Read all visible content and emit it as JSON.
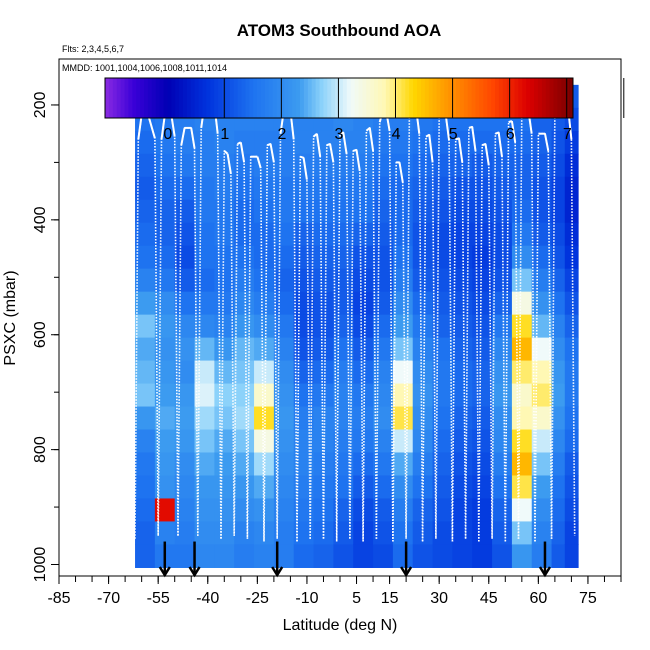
{
  "chart_data": {
    "type": "heatmap",
    "title": "ATOM3 Southbound AOA",
    "flights_label": "Flts: 2,3,4,5,6,7",
    "dates_label": "MMDD: 1001,1004,1006,1008,1011,1014",
    "xlabel": "Latitude (deg N)",
    "ylabel": "PSXC (mbar)",
    "xlim": [
      -85,
      85
    ],
    "ylim": [
      1020,
      120
    ],
    "x_ticks": [
      -85,
      -70,
      -55,
      -40,
      -25,
      -10,
      5,
      15,
      30,
      45,
      60,
      75
    ],
    "x_tick_labels": [
      "-85",
      "-70",
      "-55",
      "-40",
      "-25",
      "-10",
      "5",
      "15",
      "30",
      "45",
      "60",
      "75"
    ],
    "y_ticks": [
      200,
      400,
      600,
      800,
      1000
    ],
    "y_tick_labels": [
      "200",
      "400",
      "600",
      "800",
      "1000"
    ],
    "colorbar": {
      "range": [
        -1.1,
        7.1
      ],
      "ticks": [
        0,
        1,
        2,
        3,
        4,
        5,
        6,
        7
      ],
      "tick_labels": [
        "0",
        "1",
        "2",
        "3",
        "4",
        "5",
        "6",
        "7"
      ],
      "stops": [
        {
          "v": -1.1,
          "c": "#8a2be2"
        },
        {
          "v": -0.6,
          "c": "#3a00d8"
        },
        {
          "v": 0.0,
          "c": "#0000b4"
        },
        {
          "v": 0.7,
          "c": "#0033dd"
        },
        {
          "v": 1.5,
          "c": "#1e73f0"
        },
        {
          "v": 2.3,
          "c": "#3c9bf0"
        },
        {
          "v": 2.7,
          "c": "#8cd2fa"
        },
        {
          "v": 3.2,
          "c": "#f0fafa"
        },
        {
          "v": 3.8,
          "c": "#fff8b4"
        },
        {
          "v": 4.3,
          "c": "#ffd700"
        },
        {
          "v": 5.0,
          "c": "#ff8c00"
        },
        {
          "v": 5.7,
          "c": "#ff4500"
        },
        {
          "v": 6.3,
          "c": "#dc0000"
        },
        {
          "v": 7.1,
          "c": "#780000"
        }
      ]
    },
    "data_extent": {
      "lat_min": -62,
      "lat_max": 72,
      "p_top": 165,
      "p_bottom": 1005
    },
    "field_columns": [
      {
        "lat_start": -62,
        "lat_end": -56,
        "values": [
          1.6,
          1.5,
          1.4,
          1.3,
          1.2,
          1.3,
          1.4,
          1.5,
          1.8,
          2.3,
          2.6,
          2.4,
          2.5,
          2.6,
          2.2,
          1.8,
          1.6,
          1.5,
          1.4,
          1.3,
          1.3
        ]
      },
      {
        "lat_start": -56,
        "lat_end": -50,
        "values": [
          1.7,
          1.6,
          1.6,
          1.5,
          1.4,
          1.3,
          1.3,
          1.4,
          1.6,
          2.0,
          2.2,
          2.1,
          2.2,
          2.3,
          2.4,
          2.3,
          2.2,
          2.1,
          6.2,
          1.8,
          1.6
        ]
      },
      {
        "lat_start": -50,
        "lat_end": -44,
        "values": [
          1.8,
          1.7,
          1.7,
          1.6,
          1.4,
          1.2,
          1.1,
          1.0,
          1.2,
          1.5,
          1.9,
          2.1,
          2.0,
          2.2,
          2.3,
          2.2,
          2.0,
          1.9,
          1.8,
          1.7,
          1.6
        ]
      },
      {
        "lat_start": -44,
        "lat_end": -38,
        "values": [
          1.8,
          1.8,
          1.7,
          1.7,
          1.6,
          1.6,
          1.5,
          1.5,
          1.4,
          1.6,
          1.9,
          2.5,
          3.0,
          3.1,
          2.8,
          2.6,
          2.4,
          2.2,
          2.1,
          2.0,
          1.9
        ]
      },
      {
        "lat_start": -38,
        "lat_end": -32,
        "values": [
          1.9,
          1.8,
          1.8,
          1.7,
          1.7,
          1.6,
          1.6,
          1.5,
          1.5,
          1.6,
          1.8,
          2.2,
          2.5,
          2.7,
          2.6,
          2.4,
          2.3,
          2.2,
          2.1,
          2.0,
          1.9
        ]
      },
      {
        "lat_start": -32,
        "lat_end": -26,
        "values": [
          1.8,
          1.8,
          1.7,
          1.6,
          1.5,
          1.4,
          1.4,
          1.5,
          1.7,
          1.9,
          2.2,
          2.5,
          2.6,
          2.7,
          2.8,
          2.6,
          2.4,
          2.2,
          2.0,
          1.8,
          1.7
        ]
      },
      {
        "lat_start": -26,
        "lat_end": -20,
        "values": [
          1.8,
          1.8,
          1.7,
          1.7,
          1.6,
          1.5,
          1.4,
          1.4,
          1.5,
          1.7,
          2.0,
          2.4,
          3.0,
          3.6,
          4.2,
          3.4,
          2.8,
          2.4,
          2.1,
          1.9,
          1.8
        ]
      },
      {
        "lat_start": -20,
        "lat_end": -14,
        "values": [
          1.8,
          1.8,
          1.7,
          1.7,
          1.6,
          1.6,
          1.5,
          1.4,
          1.3,
          1.4,
          1.6,
          1.8,
          2.0,
          2.1,
          2.2,
          2.1,
          2.0,
          1.9,
          1.8,
          1.7,
          1.7
        ]
      },
      {
        "lat_start": -14,
        "lat_end": -8,
        "values": [
          1.9,
          1.8,
          1.8,
          1.7,
          1.6,
          1.5,
          1.3,
          1.2,
          1.1,
          1.0,
          1.0,
          1.1,
          1.3,
          1.5,
          1.7,
          1.8,
          1.8,
          1.7,
          1.6,
          1.5,
          1.4
        ]
      },
      {
        "lat_start": -8,
        "lat_end": -2,
        "values": [
          1.9,
          1.8,
          1.8,
          1.7,
          1.6,
          1.5,
          1.4,
          1.3,
          1.2,
          1.1,
          1.1,
          1.2,
          1.4,
          1.6,
          1.8,
          1.8,
          1.7,
          1.6,
          1.5,
          1.4,
          1.3
        ]
      },
      {
        "lat_start": -2,
        "lat_end": 4,
        "values": [
          1.9,
          1.9,
          1.8,
          1.7,
          1.6,
          1.5,
          1.4,
          1.3,
          1.2,
          1.2,
          1.3,
          1.5,
          1.7,
          1.8,
          1.8,
          1.7,
          1.6,
          1.5,
          1.3,
          1.2,
          1.1
        ]
      },
      {
        "lat_start": 4,
        "lat_end": 10,
        "values": [
          1.9,
          1.8,
          1.8,
          1.7,
          1.6,
          1.5,
          1.3,
          1.1,
          1.0,
          0.9,
          1.0,
          1.2,
          1.4,
          1.6,
          1.7,
          1.6,
          1.4,
          1.2,
          1.0,
          0.9,
          0.9
        ]
      },
      {
        "lat_start": 10,
        "lat_end": 16,
        "values": [
          1.8,
          1.7,
          1.6,
          1.5,
          1.4,
          1.3,
          1.2,
          1.1,
          1.1,
          1.2,
          1.4,
          1.6,
          1.8,
          1.9,
          2.0,
          1.8,
          1.6,
          1.4,
          1.2,
          1.1,
          1.0
        ]
      },
      {
        "lat_start": 16,
        "lat_end": 22,
        "values": [
          1.8,
          1.7,
          1.6,
          1.5,
          1.4,
          1.4,
          1.4,
          1.5,
          1.7,
          2.0,
          2.3,
          2.6,
          3.2,
          3.8,
          4.1,
          3.0,
          2.4,
          2.0,
          1.7,
          1.5,
          1.4
        ]
      },
      {
        "lat_start": 22,
        "lat_end": 28,
        "values": [
          1.7,
          1.6,
          1.5,
          1.4,
          1.3,
          1.2,
          1.1,
          1.1,
          1.2,
          1.4,
          1.6,
          1.8,
          2.0,
          2.1,
          2.0,
          1.9,
          1.7,
          1.5,
          1.3,
          1.2,
          1.1
        ]
      },
      {
        "lat_start": 28,
        "lat_end": 34,
        "values": [
          1.6,
          1.5,
          1.4,
          1.3,
          1.2,
          1.1,
          1.0,
          1.0,
          1.1,
          1.2,
          1.3,
          1.5,
          1.6,
          1.6,
          1.5,
          1.4,
          1.3,
          1.2,
          1.1,
          1.0,
          1.0
        ]
      },
      {
        "lat_start": 34,
        "lat_end": 40,
        "values": [
          1.6,
          1.5,
          1.4,
          1.3,
          1.1,
          1.0,
          0.9,
          0.9,
          1.0,
          1.1,
          1.2,
          1.3,
          1.4,
          1.4,
          1.3,
          1.2,
          1.1,
          1.0,
          0.9,
          0.9,
          0.9
        ]
      },
      {
        "lat_start": 40,
        "lat_end": 46,
        "values": [
          1.6,
          1.5,
          1.4,
          1.2,
          1.1,
          1.0,
          0.9,
          0.8,
          0.9,
          1.0,
          1.1,
          1.2,
          1.3,
          1.3,
          1.2,
          1.1,
          1.0,
          0.9,
          0.8,
          0.8,
          0.8
        ]
      },
      {
        "lat_start": 46,
        "lat_end": 52,
        "values": [
          1.6,
          1.5,
          1.4,
          1.3,
          1.2,
          1.1,
          1.0,
          1.0,
          1.1,
          1.3,
          1.6,
          1.9,
          2.1,
          2.2,
          2.0,
          1.9,
          1.7,
          1.5,
          1.3,
          1.2,
          1.1
        ]
      },
      {
        "lat_start": 52,
        "lat_end": 58,
        "values": [
          1.5,
          1.5,
          1.4,
          1.3,
          1.3,
          1.4,
          1.6,
          2.0,
          2.6,
          3.4,
          4.2,
          4.6,
          4.0,
          3.6,
          3.8,
          4.2,
          4.6,
          4.1,
          3.2,
          2.6,
          2.2
        ]
      },
      {
        "lat_start": 58,
        "lat_end": 64,
        "values": [
          1.4,
          1.3,
          1.3,
          1.2,
          1.1,
          1.1,
          1.2,
          1.4,
          1.7,
          2.1,
          2.5,
          3.2,
          3.8,
          4.0,
          3.6,
          3.0,
          2.6,
          2.3,
          2.0,
          1.8,
          1.7
        ]
      },
      {
        "lat_start": 64,
        "lat_end": 68,
        "values": [
          1.3,
          1.2,
          1.1,
          1.0,
          0.9,
          0.9,
          1.0,
          1.1,
          1.3,
          1.5,
          1.8,
          2.0,
          2.2,
          2.3,
          2.1,
          1.9,
          1.7,
          1.5,
          1.4,
          1.3,
          1.2
        ]
      },
      {
        "lat_start": 68,
        "lat_end": 72,
        "values": [
          1.2,
          1.0,
          0.8,
          0.6,
          0.5,
          0.5,
          0.6,
          0.7,
          0.9,
          1.1,
          1.3,
          1.5,
          1.6,
          1.6,
          1.5,
          1.4,
          1.2,
          1.1,
          1.0,
          0.9,
          0.9
        ]
      }
    ],
    "flight_tracks": [
      [
        [
          -62,
          955
        ],
        [
          -61,
          260
        ],
        [
          -60,
          218
        ],
        [
          -58,
          218
        ],
        [
          -56,
          258
        ],
        [
          -55,
          950
        ]
      ],
      [
        [
          -55,
          950
        ],
        [
          -54,
          260
        ],
        [
          -53,
          218
        ],
        [
          -51,
          218
        ],
        [
          -50,
          255
        ],
        [
          -49,
          950
        ]
      ],
      [
        [
          -49,
          950
        ],
        [
          -48,
          270
        ],
        [
          -47,
          240
        ],
        [
          -45,
          240
        ],
        [
          -44,
          275
        ],
        [
          -43,
          950
        ]
      ],
      [
        [
          -43,
          950
        ],
        [
          -42,
          240
        ],
        [
          -41,
          200
        ],
        [
          -38,
          200
        ],
        [
          -37,
          250
        ],
        [
          -36,
          955
        ]
      ],
      [
        [
          -36,
          955
        ],
        [
          -35,
          280
        ],
        [
          -34,
          285
        ],
        [
          -33,
          320
        ],
        [
          -32,
          950
        ]
      ],
      [
        [
          -32,
          950
        ],
        [
          -31,
          268
        ],
        [
          -30,
          265
        ],
        [
          -29,
          300
        ],
        [
          -28,
          955
        ]
      ],
      [
        [
          -28,
          955
        ],
        [
          -27,
          290
        ],
        [
          -25,
          290
        ],
        [
          -24,
          310
        ],
        [
          -23,
          960
        ]
      ],
      [
        [
          -23,
          960
        ],
        [
          -22,
          270
        ],
        [
          -21,
          268
        ],
        [
          -20,
          300
        ],
        [
          -19,
          955
        ]
      ],
      [
        [
          -19,
          955
        ],
        [
          -18,
          250
        ],
        [
          -17,
          210
        ],
        [
          -15,
          210
        ],
        [
          -14,
          260
        ],
        [
          -13,
          960
        ]
      ],
      [
        [
          -13,
          960
        ],
        [
          -12,
          290
        ],
        [
          -11,
          292
        ],
        [
          -10,
          330
        ],
        [
          -9,
          955
        ]
      ],
      [
        [
          -9,
          955
        ],
        [
          -8,
          255
        ],
        [
          -7,
          250
        ],
        [
          -6,
          290
        ],
        [
          -5,
          955
        ]
      ],
      [
        [
          -5,
          955
        ],
        [
          -4,
          270
        ],
        [
          -3,
          268
        ],
        [
          -2,
          300
        ],
        [
          -1,
          960
        ]
      ],
      [
        [
          -1,
          960
        ],
        [
          0,
          250
        ],
        [
          1,
          248
        ],
        [
          2,
          285
        ],
        [
          3,
          955
        ]
      ],
      [
        [
          3,
          955
        ],
        [
          4,
          280
        ],
        [
          5,
          278
        ],
        [
          6,
          315
        ],
        [
          7,
          960
        ]
      ],
      [
        [
          7,
          960
        ],
        [
          8,
          245
        ],
        [
          9,
          240
        ],
        [
          10,
          280
        ],
        [
          11,
          955
        ]
      ],
      [
        [
          11,
          955
        ],
        [
          12,
          230
        ],
        [
          13,
          210
        ],
        [
          14,
          212
        ],
        [
          15,
          245
        ],
        [
          16,
          960
        ]
      ],
      [
        [
          16,
          960
        ],
        [
          17,
          300
        ],
        [
          18,
          300
        ],
        [
          19,
          335
        ],
        [
          20,
          955
        ]
      ],
      [
        [
          20,
          955
        ],
        [
          21,
          210
        ],
        [
          23,
          205
        ],
        [
          24,
          250
        ],
        [
          25,
          960
        ]
      ],
      [
        [
          25,
          960
        ],
        [
          26,
          255
        ],
        [
          27,
          252
        ],
        [
          28,
          300
        ],
        [
          29,
          955
        ]
      ],
      [
        [
          29,
          955
        ],
        [
          30,
          220
        ],
        [
          32,
          218
        ],
        [
          33,
          262
        ],
        [
          34,
          960
        ]
      ],
      [
        [
          34,
          960
        ],
        [
          35,
          260
        ],
        [
          36,
          258
        ],
        [
          37,
          300
        ],
        [
          38,
          955
        ]
      ],
      [
        [
          38,
          955
        ],
        [
          39,
          240
        ],
        [
          40,
          238
        ],
        [
          41,
          280
        ],
        [
          42,
          960
        ]
      ],
      [
        [
          42,
          960
        ],
        [
          43,
          270
        ],
        [
          44,
          268
        ],
        [
          45,
          305
        ],
        [
          46,
          955
        ]
      ],
      [
        [
          46,
          955
        ],
        [
          47,
          250
        ],
        [
          48,
          248
        ],
        [
          49,
          290
        ],
        [
          50,
          960
        ]
      ],
      [
        [
          50,
          960
        ],
        [
          51,
          230
        ],
        [
          52,
          228
        ],
        [
          53,
          265
        ],
        [
          54,
          955
        ]
      ],
      [
        [
          54,
          955
        ],
        [
          55,
          210
        ],
        [
          57,
          210
        ],
        [
          58,
          250
        ],
        [
          59,
          960
        ]
      ],
      [
        [
          59,
          960
        ],
        [
          60,
          250
        ],
        [
          62,
          250
        ],
        [
          63,
          280
        ],
        [
          64,
          955
        ]
      ],
      [
        [
          64,
          955
        ],
        [
          65,
          205
        ],
        [
          67,
          200
        ],
        [
          69,
          205
        ],
        [
          70,
          260
        ],
        [
          71,
          950
        ]
      ]
    ],
    "track_color": "#ffffff",
    "arrows_lat": [
      -53,
      -44,
      -19,
      20,
      62
    ],
    "arrow_color": "#000000"
  }
}
